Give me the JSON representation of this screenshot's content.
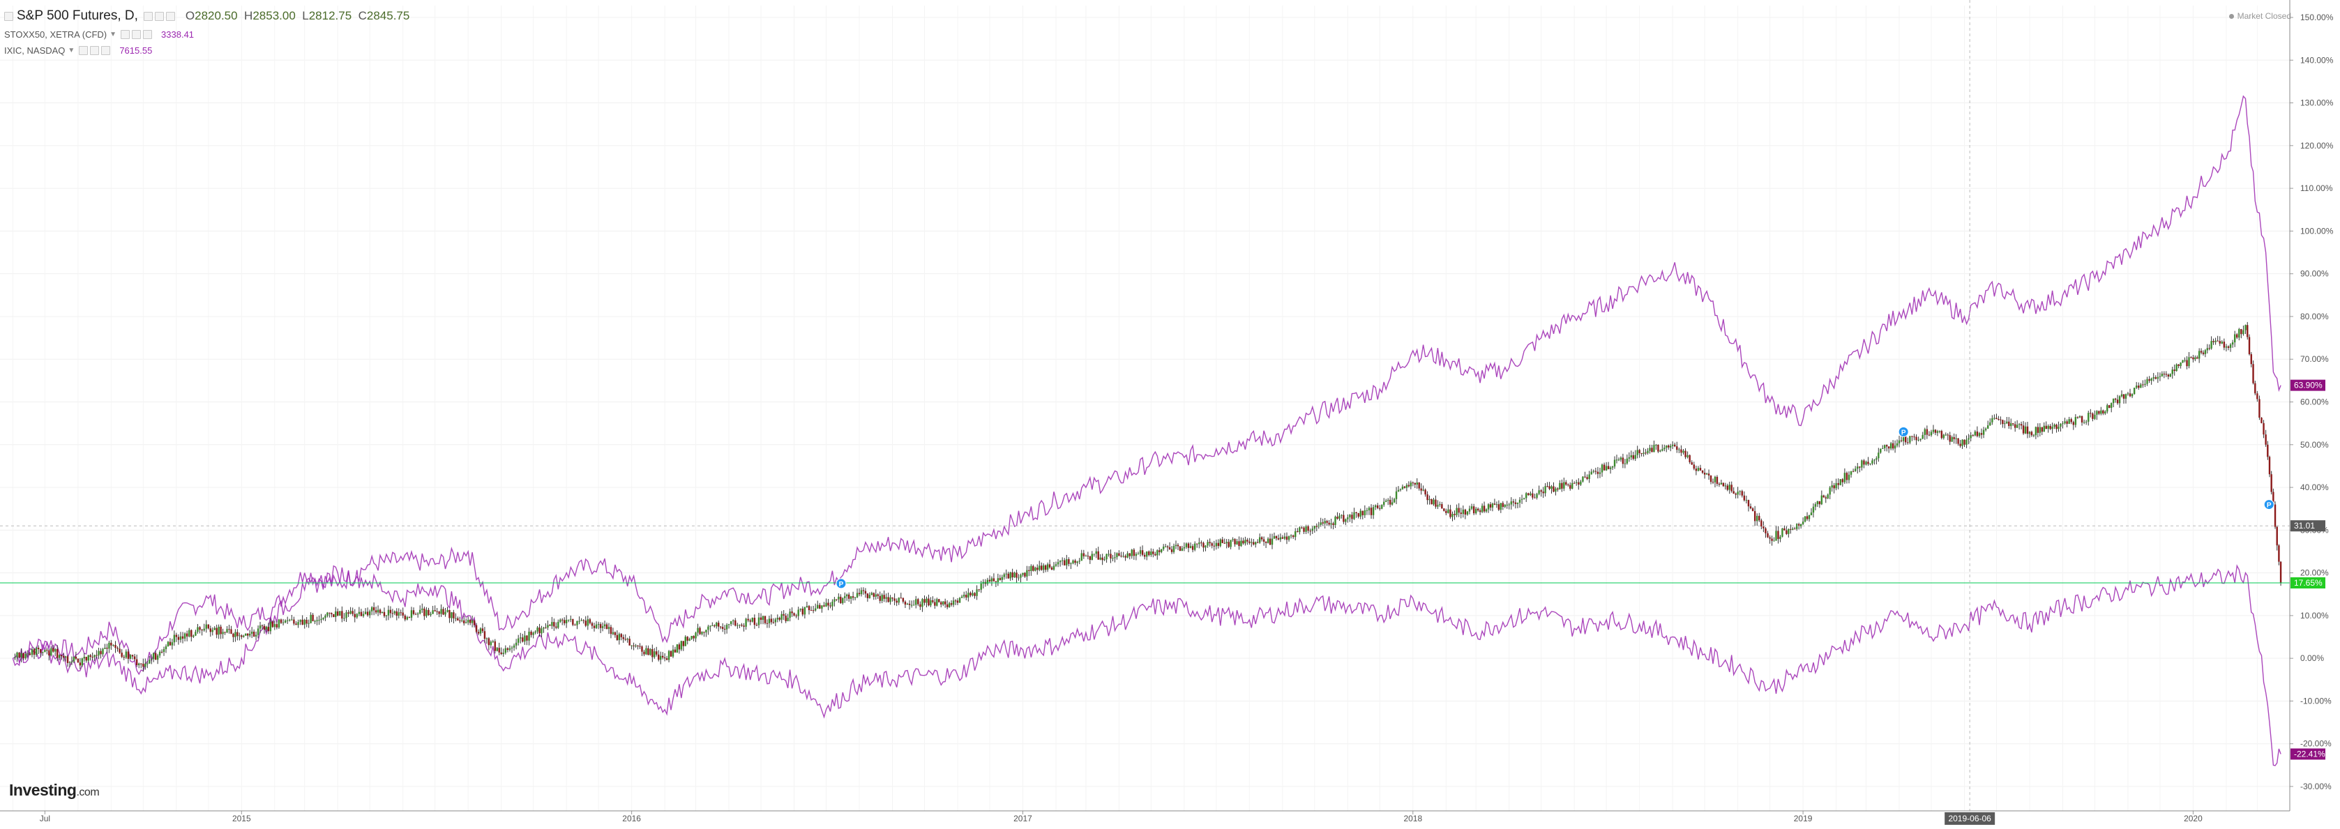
{
  "header": {
    "title": "S&P 500 Futures, D,",
    "ohlc": {
      "open_label": "O",
      "open": "2820.50",
      "high_label": "H",
      "high": "2853.00",
      "low_label": "L",
      "low": "2812.75",
      "close_label": "C",
      "close": "2845.75"
    }
  },
  "legend": [
    {
      "name": "STOXX50, XETRA (CFD)",
      "value": "3338.41"
    },
    {
      "name": "IXIC, NASDAQ",
      "value": "7615.55"
    }
  ],
  "status": "Market Closed",
  "logo": {
    "main": "Investing",
    "suffix": ".com"
  },
  "colors": {
    "compare_line": "#9c27b0",
    "candle_up": "#3c8a2e",
    "candle_down": "#8b1a1a",
    "baseline": "#00c853",
    "label_purple": "#8e0f7e",
    "label_green": "#22cc22",
    "label_dark": "#5a5a5a"
  },
  "chart_data": {
    "type": "line",
    "title": "S&P 500 Futures, D,",
    "x_tick_labels": [
      "Jul",
      "2015",
      "2016",
      "2017",
      "2018",
      "2019",
      "2020"
    ],
    "x_ticks": [
      "2014-07",
      "2015-01",
      "2016-01",
      "2017-01",
      "2018-01",
      "2019-01",
      "2020-01"
    ],
    "crosshair_date_label": "2019-06-06",
    "ylim": [
      -33,
      153
    ],
    "y_unit": "%",
    "y_tick_labels": [
      "150.00%",
      "140.00%",
      "130.00%",
      "120.00%",
      "110.00%",
      "100.00%",
      "90.00%",
      "80.00%",
      "70.00%",
      "60.00%",
      "50.00%",
      "40.00%",
      "30.00%",
      "20.00%",
      "10.00%",
      "0.00%",
      "-10.00%",
      "-20.00%",
      "-30.00%"
    ],
    "y_ticks": [
      150,
      140,
      130,
      120,
      110,
      100,
      90,
      80,
      70,
      60,
      50,
      40,
      30,
      20,
      10,
      0,
      -10,
      -20,
      -30
    ],
    "crosshair_price_label": "31.01",
    "crosshair_price": 31.0,
    "baseline_value": 17.65,
    "last_value_labels": [
      {
        "text": "63.90%",
        "value": 63.9,
        "color": "#8e0f7e"
      },
      {
        "text": "17.65%",
        "value": 17.65,
        "color": "#22cc22"
      },
      {
        "text": "-22.41%",
        "value": -22.41,
        "color": "#8e0f7e"
      }
    ],
    "dividend_markers": [
      {
        "x": "2016-07-15",
        "y": 17.5,
        "label": "P"
      },
      {
        "x": "2019-04-05",
        "y": 53,
        "label": "P"
      },
      {
        "x": "2020-03-12",
        "y": 36,
        "label": "P"
      }
    ],
    "series": [
      {
        "name": "IXIC, NASDAQ",
        "style": "line",
        "points": [
          [
            "2014-06-01",
            0
          ],
          [
            "2014-07-01",
            4
          ],
          [
            "2014-08-01",
            1
          ],
          [
            "2014-09-01",
            7
          ],
          [
            "2014-10-01",
            -3
          ],
          [
            "2014-11-01",
            10
          ],
          [
            "2014-12-01",
            14
          ],
          [
            "2015-01-01",
            8
          ],
          [
            "2015-02-01",
            12
          ],
          [
            "2015-03-01",
            20
          ],
          [
            "2015-04-01",
            17
          ],
          [
            "2015-05-01",
            22
          ],
          [
            "2015-06-01",
            23
          ],
          [
            "2015-07-01",
            22
          ],
          [
            "2015-08-01",
            25
          ],
          [
            "2015-09-01",
            7
          ],
          [
            "2015-10-01",
            13
          ],
          [
            "2015-11-01",
            20
          ],
          [
            "2015-12-01",
            22
          ],
          [
            "2016-01-01",
            18
          ],
          [
            "2016-02-01",
            5
          ],
          [
            "2016-03-01",
            12
          ],
          [
            "2016-04-01",
            16
          ],
          [
            "2016-05-01",
            14
          ],
          [
            "2016-06-01",
            17
          ],
          [
            "2016-07-01",
            17
          ],
          [
            "2016-08-01",
            25
          ],
          [
            "2016-09-01",
            27
          ],
          [
            "2016-10-01",
            26
          ],
          [
            "2016-11-01",
            24
          ],
          [
            "2016-12-01",
            29
          ],
          [
            "2017-01-01",
            33
          ],
          [
            "2017-02-01",
            37
          ],
          [
            "2017-03-01",
            40
          ],
          [
            "2017-04-01",
            42
          ],
          [
            "2017-05-01",
            46
          ],
          [
            "2017-06-01",
            47
          ],
          [
            "2017-07-01",
            49
          ],
          [
            "2017-08-01",
            51
          ],
          [
            "2017-09-01",
            52
          ],
          [
            "2017-10-01",
            57
          ],
          [
            "2017-11-01",
            60
          ],
          [
            "2017-12-01",
            63
          ],
          [
            "2018-01-01",
            72
          ],
          [
            "2018-02-01",
            70
          ],
          [
            "2018-03-01",
            66
          ],
          [
            "2018-04-01",
            68
          ],
          [
            "2018-05-01",
            75
          ],
          [
            "2018-06-01",
            80
          ],
          [
            "2018-07-01",
            83
          ],
          [
            "2018-08-01",
            88
          ],
          [
            "2018-09-01",
            91
          ],
          [
            "2018-10-01",
            85
          ],
          [
            "2018-11-01",
            72
          ],
          [
            "2018-12-01",
            60
          ],
          [
            "2019-01-01",
            56
          ],
          [
            "2019-02-01",
            66
          ],
          [
            "2019-03-01",
            73
          ],
          [
            "2019-04-01",
            81
          ],
          [
            "2019-05-01",
            85
          ],
          [
            "2019-06-01",
            80
          ],
          [
            "2019-07-01",
            87
          ],
          [
            "2019-08-01",
            82
          ],
          [
            "2019-09-01",
            85
          ],
          [
            "2019-10-01",
            89
          ],
          [
            "2019-11-01",
            95
          ],
          [
            "2019-12-01",
            101
          ],
          [
            "2020-01-01",
            108
          ],
          [
            "2020-01-20",
            115
          ],
          [
            "2020-02-01",
            117
          ],
          [
            "2020-02-19",
            131
          ],
          [
            "2020-02-28",
            107
          ],
          [
            "2020-03-09",
            95
          ],
          [
            "2020-03-16",
            67
          ],
          [
            "2020-03-23",
            63.9
          ]
        ]
      },
      {
        "name": "STOXX50, XETRA (CFD)",
        "style": "line",
        "points": [
          [
            "2014-06-01",
            0
          ],
          [
            "2014-07-01",
            2
          ],
          [
            "2014-08-01",
            -3
          ],
          [
            "2014-09-01",
            0
          ],
          [
            "2014-10-01",
            -7
          ],
          [
            "2014-11-01",
            -3
          ],
          [
            "2014-12-01",
            -4
          ],
          [
            "2015-01-01",
            0
          ],
          [
            "2015-02-01",
            10
          ],
          [
            "2015-03-01",
            16
          ],
          [
            "2015-04-01",
            20
          ],
          [
            "2015-05-01",
            18
          ],
          [
            "2015-06-01",
            14
          ],
          [
            "2015-07-01",
            17
          ],
          [
            "2015-08-01",
            10
          ],
          [
            "2015-09-01",
            -2
          ],
          [
            "2015-10-01",
            3
          ],
          [
            "2015-11-01",
            5
          ],
          [
            "2015-12-01",
            0
          ],
          [
            "2016-01-01",
            -6
          ],
          [
            "2016-02-01",
            -12
          ],
          [
            "2016-03-01",
            -4
          ],
          [
            "2016-04-01",
            -2
          ],
          [
            "2016-05-01",
            -4
          ],
          [
            "2016-06-01",
            -5
          ],
          [
            "2016-07-01",
            -12
          ],
          [
            "2016-08-01",
            -6
          ],
          [
            "2016-09-01",
            -5
          ],
          [
            "2016-10-01",
            -4
          ],
          [
            "2016-11-01",
            -4
          ],
          [
            "2016-12-01",
            2
          ],
          [
            "2017-01-01",
            2
          ],
          [
            "2017-02-01",
            3
          ],
          [
            "2017-03-01",
            6
          ],
          [
            "2017-04-01",
            8
          ],
          [
            "2017-05-01",
            12
          ],
          [
            "2017-06-01",
            12
          ],
          [
            "2017-07-01",
            10
          ],
          [
            "2017-08-01",
            9
          ],
          [
            "2017-09-01",
            11
          ],
          [
            "2017-10-01",
            13
          ],
          [
            "2017-11-01",
            12
          ],
          [
            "2017-12-01",
            10
          ],
          [
            "2018-01-01",
            14
          ],
          [
            "2018-02-01",
            9
          ],
          [
            "2018-03-01",
            6
          ],
          [
            "2018-04-01",
            9
          ],
          [
            "2018-05-01",
            11
          ],
          [
            "2018-06-01",
            7
          ],
          [
            "2018-07-01",
            9
          ],
          [
            "2018-08-01",
            8
          ],
          [
            "2018-09-01",
            5
          ],
          [
            "2018-10-01",
            1
          ],
          [
            "2018-11-01",
            -2
          ],
          [
            "2018-12-01",
            -7
          ],
          [
            "2019-01-01",
            -3
          ],
          [
            "2019-02-01",
            2
          ],
          [
            "2019-03-01",
            6
          ],
          [
            "2019-04-01",
            10
          ],
          [
            "2019-05-01",
            5
          ],
          [
            "2019-06-01",
            8
          ],
          [
            "2019-07-01",
            12
          ],
          [
            "2019-08-01",
            8
          ],
          [
            "2019-09-01",
            12
          ],
          [
            "2019-10-01",
            14
          ],
          [
            "2019-11-01",
            16
          ],
          [
            "2019-12-01",
            17
          ],
          [
            "2020-01-01",
            18
          ],
          [
            "2020-02-01",
            19
          ],
          [
            "2020-02-19",
            20
          ],
          [
            "2020-02-28",
            8
          ],
          [
            "2020-03-09",
            -8
          ],
          [
            "2020-03-16",
            -25
          ],
          [
            "2020-03-23",
            -22.41
          ]
        ]
      },
      {
        "name": "S&P 500 Futures",
        "style": "candles",
        "points": [
          [
            "2014-06-01",
            0
          ],
          [
            "2014-07-01",
            2
          ],
          [
            "2014-08-01",
            -1
          ],
          [
            "2014-09-01",
            3
          ],
          [
            "2014-10-01",
            -2
          ],
          [
            "2014-11-01",
            5
          ],
          [
            "2014-12-01",
            7
          ],
          [
            "2015-01-01",
            5
          ],
          [
            "2015-02-01",
            8
          ],
          [
            "2015-03-01",
            9
          ],
          [
            "2015-04-01",
            10
          ],
          [
            "2015-05-01",
            11
          ],
          [
            "2015-06-01",
            10
          ],
          [
            "2015-07-01",
            11
          ],
          [
            "2015-08-01",
            9
          ],
          [
            "2015-09-01",
            1
          ],
          [
            "2015-10-01",
            6
          ],
          [
            "2015-11-01",
            9
          ],
          [
            "2015-12-01",
            8
          ],
          [
            "2016-01-01",
            3
          ],
          [
            "2016-02-01",
            0
          ],
          [
            "2016-03-01",
            6
          ],
          [
            "2016-04-01",
            8
          ],
          [
            "2016-05-01",
            9
          ],
          [
            "2016-06-01",
            10
          ],
          [
            "2016-07-01",
            13
          ],
          [
            "2016-08-01",
            15
          ],
          [
            "2016-09-01",
            14
          ],
          [
            "2016-10-01",
            13
          ],
          [
            "2016-11-01",
            13
          ],
          [
            "2016-12-01",
            18
          ],
          [
            "2017-01-01",
            20
          ],
          [
            "2017-02-01",
            22
          ],
          [
            "2017-03-01",
            24
          ],
          [
            "2017-04-01",
            24
          ],
          [
            "2017-05-01",
            25
          ],
          [
            "2017-06-01",
            26
          ],
          [
            "2017-07-01",
            27
          ],
          [
            "2017-08-01",
            27
          ],
          [
            "2017-09-01",
            28
          ],
          [
            "2017-10-01",
            31
          ],
          [
            "2017-11-01",
            33
          ],
          [
            "2017-12-01",
            35
          ],
          [
            "2018-01-01",
            41
          ],
          [
            "2018-02-01",
            34
          ],
          [
            "2018-03-01",
            35
          ],
          [
            "2018-04-01",
            36
          ],
          [
            "2018-05-01",
            39
          ],
          [
            "2018-06-01",
            41
          ],
          [
            "2018-07-01",
            45
          ],
          [
            "2018-08-01",
            48
          ],
          [
            "2018-09-01",
            50
          ],
          [
            "2018-10-01",
            43
          ],
          [
            "2018-11-01",
            39
          ],
          [
            "2018-12-01",
            28
          ],
          [
            "2019-01-01",
            32
          ],
          [
            "2019-02-01",
            41
          ],
          [
            "2019-03-01",
            46
          ],
          [
            "2019-04-01",
            51
          ],
          [
            "2019-05-01",
            53
          ],
          [
            "2019-06-01",
            50
          ],
          [
            "2019-07-01",
            56
          ],
          [
            "2019-08-01",
            53
          ],
          [
            "2019-09-01",
            55
          ],
          [
            "2019-10-01",
            57
          ],
          [
            "2019-11-01",
            62
          ],
          [
            "2019-12-01",
            66
          ],
          [
            "2020-01-01",
            70
          ],
          [
            "2020-01-20",
            74
          ],
          [
            "2020-02-01",
            73
          ],
          [
            "2020-02-19",
            78
          ],
          [
            "2020-02-28",
            62
          ],
          [
            "2020-03-09",
            50
          ],
          [
            "2020-03-16",
            36
          ],
          [
            "2020-03-23",
            17.65
          ]
        ]
      }
    ],
    "grid": true,
    "legend_position": "top-left"
  }
}
